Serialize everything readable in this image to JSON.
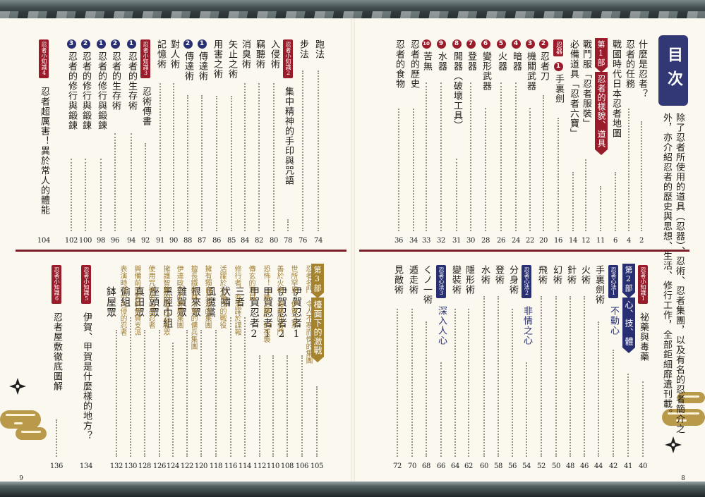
{
  "header": {
    "title": "目次"
  },
  "intro": {
    "lines": [
      "除了忍者所使用的道具（忍器）、忍術、忍者集團，以及有名的忍者簡介之",
      "外，亦介紹忍者的歷史與思想、生活、修行工作，全部鉅細靡遺刊載。"
    ]
  },
  "pages": {
    "left_number": "9",
    "right_number": "8"
  },
  "toc": {
    "top_right": [
      {
        "title": "什麼是忍者？",
        "page": "2"
      },
      {
        "title": "忍者的任務",
        "page": "4"
      },
      {
        "title": "戰國時代日本忍者地圖",
        "page": "6"
      },
      {
        "part": "第1部",
        "title": "忍者的樣貌、道具",
        "page": "11"
      },
      {
        "title": "戰鬥服「忍者服裝」",
        "page": "12"
      },
      {
        "title": "必備道具「忍者六寶」",
        "page": "14"
      },
      {
        "tag": "忍器",
        "num": "1",
        "title": "手裏劍",
        "page": "16"
      },
      {
        "num": "2",
        "title": "忍者刀",
        "page": "20"
      },
      {
        "num": "3",
        "title": "機關武器",
        "page": "22"
      },
      {
        "num": "4",
        "title": "暗器",
        "page": "24"
      },
      {
        "num": "5",
        "title": "火器",
        "page": "26"
      },
      {
        "num": "6",
        "title": "變形武器",
        "page": "28"
      },
      {
        "num": "7",
        "title": "登器",
        "page": "30"
      },
      {
        "num": "8",
        "title": "開器（破壞工具）",
        "page": "31"
      },
      {
        "num": "9",
        "title": "水器",
        "page": "32"
      },
      {
        "num": "10",
        "title": "苦無",
        "page": "33"
      },
      {
        "title": "忍者的歷史",
        "page": "34"
      },
      {
        "title": "忍者的食物",
        "page": "36"
      }
    ],
    "top_left": [
      {
        "title": "跑法",
        "page": "74"
      },
      {
        "title": "步法",
        "page": "76"
      },
      {
        "tag": "忍者小知識2",
        "title": "集中精神的手印與咒語",
        "page": "78"
      },
      {
        "title": "入侵術",
        "page": "80"
      },
      {
        "title": "竊聽術",
        "page": "82"
      },
      {
        "title": "消臭術",
        "page": "84"
      },
      {
        "title": "矢止之術",
        "page": "85"
      },
      {
        "title": "用害之術",
        "page": "86"
      },
      {
        "num": "1",
        "title": "傳達術",
        "page": "87"
      },
      {
        "num": "2",
        "title": "傳達術",
        "page": "88"
      },
      {
        "title": "對人術",
        "page": "90"
      },
      {
        "title": "記憶術",
        "page": "91"
      },
      {
        "tag": "忍者小知識3",
        "title": "忍術傳書",
        "page": "92"
      },
      {
        "num": "1",
        "title": "忍者的生存術",
        "page": "94"
      },
      {
        "num": "2",
        "title": "忍者的生存術",
        "page": "96"
      },
      {
        "num": "1",
        "title": "忍者的修行與鍛鍊",
        "page": "98"
      },
      {
        "num": "2",
        "title": "忍者的修行與鍛鍊",
        "page": "100"
      },
      {
        "num": "3",
        "title": "忍者的修行與鍛鍊",
        "page": "102"
      },
      {
        "tag": "忍者小知識4",
        "title": "忍者超厲害！異於常人的體能",
        "page": "104"
      }
    ],
    "bottom_right": [
      {
        "tag": "忍者小知識1",
        "title": "祕藥與毒藥",
        "page": "40"
      },
      {
        "part": "第2部",
        "title": "心、技、體",
        "page": "41"
      },
      {
        "tag": "忍者心法1",
        "title": "不動心",
        "page": "42"
      },
      {
        "title": "手裏劍術",
        "page": "44"
      },
      {
        "title": "火術",
        "page": "46"
      },
      {
        "title": "針術",
        "page": "48"
      },
      {
        "title": "幻術",
        "page": "50"
      },
      {
        "title": "飛術",
        "page": "52"
      },
      {
        "tag": "忍者心法2",
        "title": "非情之心",
        "page": "54"
      },
      {
        "title": "分身術",
        "page": "56"
      },
      {
        "title": "登術",
        "page": "58"
      },
      {
        "title": "水術",
        "page": "60"
      },
      {
        "title": "隱形術",
        "page": "62"
      },
      {
        "title": "變裝術",
        "page": "64"
      },
      {
        "tag": "忍者心法3",
        "title": "深入人心",
        "page": "66"
      },
      {
        "title": "くノ一術",
        "page": "68"
      },
      {
        "title": "遁走術",
        "page": "70"
      },
      {
        "title": "見敵術",
        "page": "72"
      }
    ],
    "bottom_left": [
      {
        "part": "第3部",
        "title": "檯面下的激戰",
        "page": "105"
      },
      {
        "sub": "忍者名門　令人不寒而慄的集團",
        "title": "伊賀忍者1",
        "page": "106"
      },
      {
        "sub": "世所罕見！伊賀之系",
        "title": "伊賀忍者2",
        "page": "108"
      },
      {
        "sub": "善於火術、毒藥的名門",
        "title": "甲賀忍者1",
        "page": "110"
      },
      {
        "sub": "恐怖！「鉤之陣」的夜襲",
        "title": "甲賀忍者2",
        "page": "112"
      },
      {
        "sub": "傳玄的耳目",
        "title": "三者",
        "page": "114"
      },
      {
        "sub": "修行者，亦活躍於諜報",
        "title": "伏嘯",
        "page": "116"
      },
      {
        "sub": "活躍於北條氏的戰役",
        "title": "風魔黨",
        "page": "118"
      },
      {
        "sub": "擁有獨自兵法的集團",
        "title": "根來眾",
        "page": "120"
      },
      {
        "sub": "擅長鐵砲與水軍的傭兵集團",
        "title": "雜賀眾",
        "page": "122"
      },
      {
        "sub": "伊達政宗的專屬集團",
        "title": "黑脛巾組",
        "page": "124"
      },
      {
        "sub": "擁護智將的盲人忍者眾",
        "title": "座頭眾",
        "page": "126"
      },
      {
        "sub": "使用咒術的山岳忍者",
        "title": "真田眾",
        "page": "128"
      },
      {
        "sub": "興備前田家的伊賀支派",
        "title": "偷組",
        "page": "130"
      },
      {
        "sub": "表演時暗中入侵的忍者",
        "title": "鉢屋眾",
        "page": "132"
      },
      {
        "tag": "忍者小知識5",
        "title": "伊賀、甲賀是什麼樣的地方？",
        "page": "134"
      },
      {
        "tag": "忍者小知識6",
        "title": "忍者屋敷徹底圖解",
        "page": "136"
      }
    ]
  },
  "colors": {
    "red": "#9a1c2b",
    "navy": "#283073",
    "gold": "#a5832d",
    "text": "#1f1a17"
  },
  "icons": [
    "ninja-star-icon",
    "gold-cloud-icon"
  ]
}
